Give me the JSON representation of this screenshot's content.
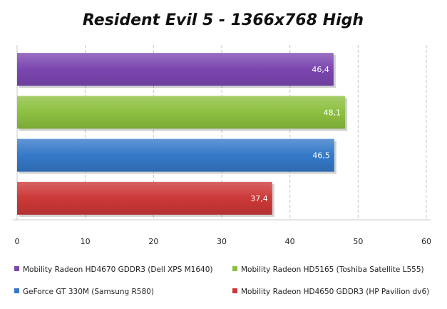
{
  "chart_data": {
    "type": "bar",
    "orientation": "horizontal",
    "title": "Resident Evil 5 - 1366x768 High",
    "xlim": [
      0,
      60
    ],
    "x_ticks": [
      0,
      10,
      20,
      30,
      40,
      50,
      60
    ],
    "grid": "vertical dashed",
    "legend_position": "bottom",
    "data_labels": [
      "46,4",
      "48,1",
      "46,5",
      "37,4"
    ],
    "series": [
      {
        "name": "Mobility Radeon HD4670 GDDR3 (Dell XPS M1640)",
        "value": 46.4,
        "color": "#7b46b0"
      },
      {
        "name": "Mobility Radeon HD5165 (Toshiba Satellite L555)",
        "value": 48.1,
        "color": "#8dc040"
      },
      {
        "name": "GeForce GT 330M (Samsung R580)",
        "value": 46.5,
        "color": "#3479c8"
      },
      {
        "name": "Mobility Radeon HD4650 GDDR3 (HP Pavilion dv6)",
        "value": 37.4,
        "color": "#cc3838"
      }
    ]
  }
}
